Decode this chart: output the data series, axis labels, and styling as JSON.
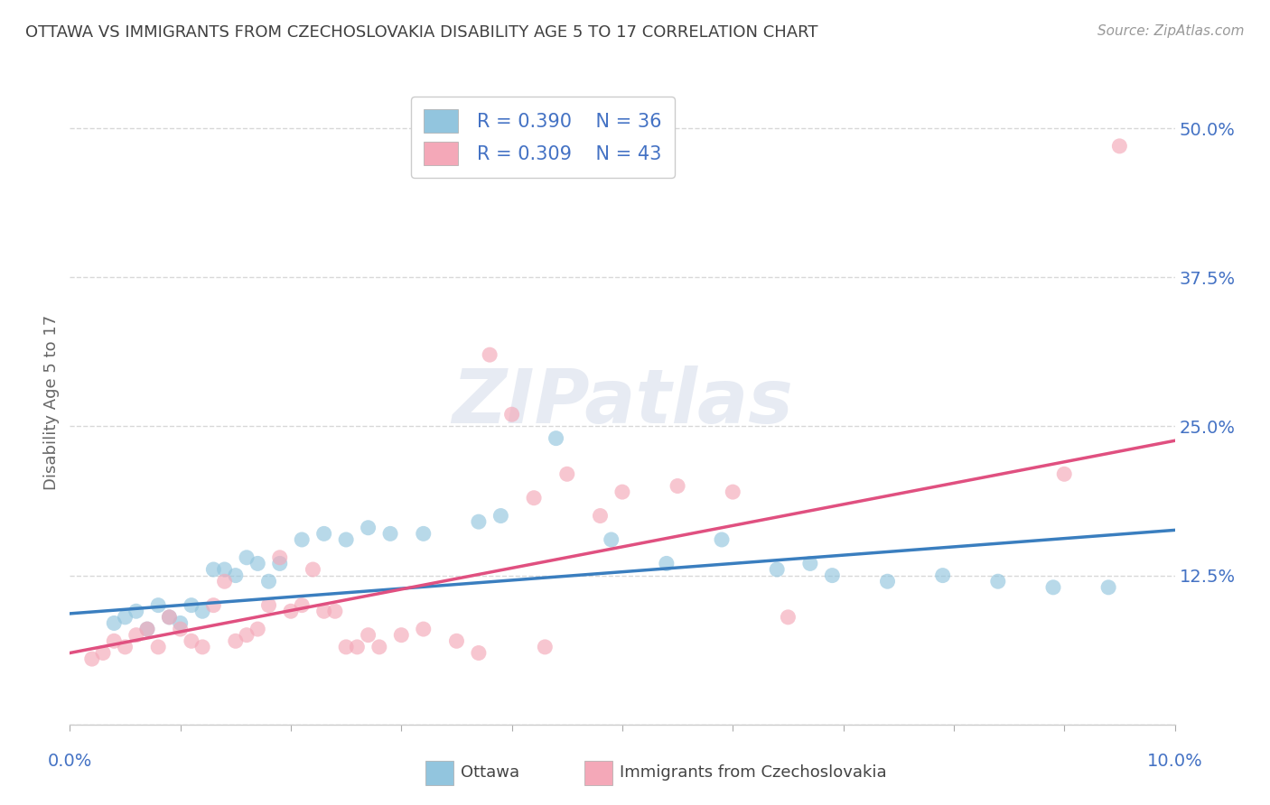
{
  "title": "OTTAWA VS IMMIGRANTS FROM CZECHOSLOVAKIA DISABILITY AGE 5 TO 17 CORRELATION CHART",
  "source": "Source: ZipAtlas.com",
  "ylabel": "Disability Age 5 to 17",
  "yticks": [
    0.0,
    0.125,
    0.25,
    0.375,
    0.5
  ],
  "ytick_labels": [
    "",
    "12.5%",
    "25.0%",
    "37.5%",
    "50.0%"
  ],
  "xlim": [
    0.0,
    0.1
  ],
  "ylim": [
    0.0,
    0.54
  ],
  "legend_blue_R": "0.390",
  "legend_blue_N": "36",
  "legend_pink_R": "0.309",
  "legend_pink_N": "43",
  "legend_label_blue": "Ottawa",
  "legend_label_pink": "Immigrants from Czechoslovakia",
  "blue_color": "#92c5de",
  "pink_color": "#f4a8b8",
  "blue_line_color": "#3a7ebf",
  "pink_line_color": "#e05080",
  "blue_scatter": [
    [
      0.004,
      0.085
    ],
    [
      0.005,
      0.09
    ],
    [
      0.006,
      0.095
    ],
    [
      0.007,
      0.08
    ],
    [
      0.008,
      0.1
    ],
    [
      0.009,
      0.09
    ],
    [
      0.01,
      0.085
    ],
    [
      0.011,
      0.1
    ],
    [
      0.012,
      0.095
    ],
    [
      0.013,
      0.13
    ],
    [
      0.014,
      0.13
    ],
    [
      0.015,
      0.125
    ],
    [
      0.016,
      0.14
    ],
    [
      0.017,
      0.135
    ],
    [
      0.018,
      0.12
    ],
    [
      0.019,
      0.135
    ],
    [
      0.021,
      0.155
    ],
    [
      0.023,
      0.16
    ],
    [
      0.025,
      0.155
    ],
    [
      0.027,
      0.165
    ],
    [
      0.029,
      0.16
    ],
    [
      0.032,
      0.16
    ],
    [
      0.037,
      0.17
    ],
    [
      0.039,
      0.175
    ],
    [
      0.044,
      0.24
    ],
    [
      0.049,
      0.155
    ],
    [
      0.054,
      0.135
    ],
    [
      0.059,
      0.155
    ],
    [
      0.064,
      0.13
    ],
    [
      0.067,
      0.135
    ],
    [
      0.069,
      0.125
    ],
    [
      0.074,
      0.12
    ],
    [
      0.079,
      0.125
    ],
    [
      0.084,
      0.12
    ],
    [
      0.089,
      0.115
    ],
    [
      0.094,
      0.115
    ]
  ],
  "pink_scatter": [
    [
      0.002,
      0.055
    ],
    [
      0.003,
      0.06
    ],
    [
      0.004,
      0.07
    ],
    [
      0.005,
      0.065
    ],
    [
      0.006,
      0.075
    ],
    [
      0.007,
      0.08
    ],
    [
      0.008,
      0.065
    ],
    [
      0.009,
      0.09
    ],
    [
      0.01,
      0.08
    ],
    [
      0.011,
      0.07
    ],
    [
      0.012,
      0.065
    ],
    [
      0.013,
      0.1
    ],
    [
      0.014,
      0.12
    ],
    [
      0.015,
      0.07
    ],
    [
      0.016,
      0.075
    ],
    [
      0.017,
      0.08
    ],
    [
      0.018,
      0.1
    ],
    [
      0.019,
      0.14
    ],
    [
      0.02,
      0.095
    ],
    [
      0.021,
      0.1
    ],
    [
      0.022,
      0.13
    ],
    [
      0.023,
      0.095
    ],
    [
      0.024,
      0.095
    ],
    [
      0.025,
      0.065
    ],
    [
      0.026,
      0.065
    ],
    [
      0.027,
      0.075
    ],
    [
      0.028,
      0.065
    ],
    [
      0.03,
      0.075
    ],
    [
      0.032,
      0.08
    ],
    [
      0.035,
      0.07
    ],
    [
      0.037,
      0.06
    ],
    [
      0.038,
      0.31
    ],
    [
      0.04,
      0.26
    ],
    [
      0.042,
      0.19
    ],
    [
      0.043,
      0.065
    ],
    [
      0.045,
      0.21
    ],
    [
      0.048,
      0.175
    ],
    [
      0.05,
      0.195
    ],
    [
      0.055,
      0.2
    ],
    [
      0.06,
      0.195
    ],
    [
      0.065,
      0.09
    ],
    [
      0.09,
      0.21
    ],
    [
      0.095,
      0.485
    ]
  ],
  "blue_line_x": [
    0.0,
    0.1
  ],
  "blue_line_y": [
    0.093,
    0.163
  ],
  "pink_line_x": [
    0.0,
    0.1
  ],
  "pink_line_y": [
    0.06,
    0.238
  ],
  "watermark": "ZIPatlas",
  "background_color": "#ffffff",
  "grid_color": "#d8d8d8",
  "title_color": "#404040",
  "axis_label_color": "#4472c4",
  "legend_text_color": "#4472c4",
  "tick_color": "#aaaaaa"
}
